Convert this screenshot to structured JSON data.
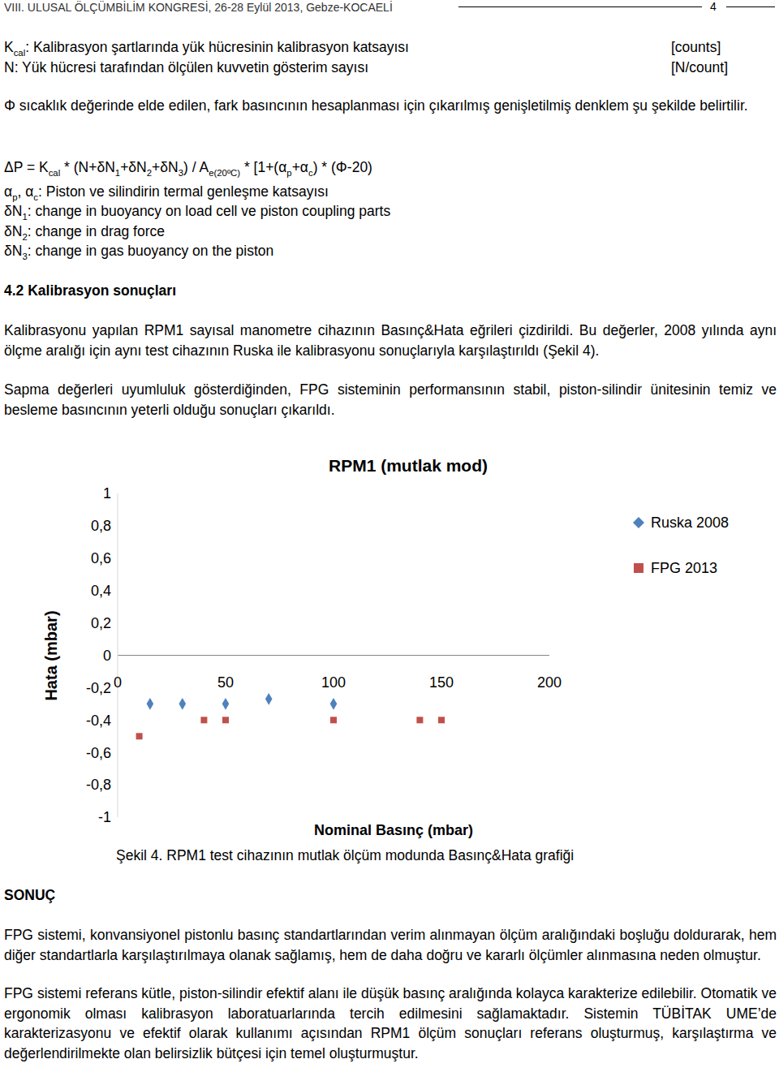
{
  "header": {
    "title": "VIII. ULUSAL ÖLÇÜMBİLİM KONGRESİ, 26-28 Eylül 2013, Gebze-KOCAELİ",
    "page": 4
  },
  "definitions": [
    {
      "parts": [
        {
          "t": "K"
        },
        {
          "sub": "cal"
        },
        {
          "t": ": Kalibrasyon şartlarında yük hücresinin kalibrasyon katsayısı"
        }
      ],
      "unit": "[counts]"
    },
    {
      "parts": [
        {
          "t": "N: Yük hücresi tarafından ölçülen kuvvetin gösterim sayısı"
        }
      ],
      "unit": "[N/count]"
    }
  ],
  "intro": "Φ sıcaklık değerinde elde edilen, fark basıncının hesaplanması için çıkarılmış genişletilmiş denklem şu şekilde belirtilir.",
  "formula": [
    {
      "t": "ΔP = K"
    },
    {
      "sub": "cal"
    },
    {
      "t": " * (N+δN"
    },
    {
      "sub": "1"
    },
    {
      "t": "+δN"
    },
    {
      "sub": "2"
    },
    {
      "t": "+δN"
    },
    {
      "sub": "3"
    },
    {
      "t": ") / A"
    },
    {
      "sub": "e(20ºC)"
    },
    {
      "t": " * [1+(α"
    },
    {
      "sub": "p"
    },
    {
      "t": "+α"
    },
    {
      "sub": "c"
    },
    {
      "t": ") * (Φ-20)"
    }
  ],
  "variables": [
    [
      {
        "t": "α"
      },
      {
        "sub": "p"
      },
      {
        "t": ", α"
      },
      {
        "sub": "c"
      },
      {
        "t": ": Piston ve silindirin termal genleşme katsayısı"
      }
    ],
    [
      {
        "t": "δN"
      },
      {
        "sub": "1"
      },
      {
        "t": ": change in buoyancy on load cell ve piston coupling parts"
      }
    ],
    [
      {
        "t": "δN"
      },
      {
        "sub": "2"
      },
      {
        "t": ": change in drag force"
      }
    ],
    [
      {
        "t": "δN"
      },
      {
        "sub": "3"
      },
      {
        "t": ": change in gas buoyancy on the piston"
      }
    ]
  ],
  "section": {
    "title": "4.2 Kalibrasyon sonuçları",
    "paragraphs": [
      "Kalibrasyonu yapılan RPM1 sayısal manometre cihazının Basınç&Hata eğrileri çizdirildi. Bu değerler, 2008 yılında aynı ölçme aralığı için aynı test cihazının Ruska ile kalibrasyonu sonuçlarıyla karşılaştırıldı (Şekil 4).",
      "Sapma değerleri uyumluluk gösterdiğinden, FPG sisteminin performansının stabil, piston-silindir ünitesinin temiz ve besleme basıncının yeterli olduğu sonuçları çıkarıldı."
    ]
  },
  "chart_data": {
    "type": "scatter",
    "title": "RPM1 (mutlak mod)",
    "x_label": "Nominal Basınç (mbar)",
    "y_label": "Hata (mbar)",
    "xlim": [
      0,
      200
    ],
    "xticks": [
      0,
      50,
      100,
      150,
      200
    ],
    "ylim": [
      -1,
      1
    ],
    "yticks": [
      -1,
      {
        "value": -0.8,
        "label": "-0,8"
      },
      {
        "value": -0.6,
        "label": "-0,6"
      },
      {
        "value": -0.4,
        "label": "-0,4"
      },
      {
        "value": -0.2,
        "label": "-0,2"
      },
      0,
      {
        "value": 0.2,
        "label": "0,2"
      },
      {
        "value": 0.4,
        "label": "0,4"
      },
      {
        "value": 0.6,
        "label": "0,6"
      },
      {
        "value": 0.8,
        "label": "0,8"
      },
      1
    ],
    "grid": false,
    "legend": "upper right",
    "series": [
      {
        "name": "Ruska 2008",
        "color": "#4f81bd",
        "marker": "diamond",
        "x": [
          15,
          30,
          50,
          70,
          100
        ],
        "values": [
          -0.3,
          -0.3,
          -0.3,
          -0.27,
          -0.3
        ]
      },
      {
        "name": "FPG 2013",
        "color": "#c0504d",
        "marker": "square",
        "x": [
          10,
          40,
          50,
          100,
          140,
          150
        ],
        "values": [
          -0.5,
          -0.4,
          -0.4,
          -0.4,
          -0.4,
          -0.4
        ]
      }
    ]
  },
  "caption": "Şekil 4. RPM1 test cihazının mutlak ölçüm modunda Basınç&Hata grafiği",
  "conclusion": {
    "title": "SONUÇ",
    "paragraphs": [
      "FPG sistemi, konvansiyonel pistonlu basınç standartlarından verim alınmayan ölçüm aralığındaki boşluğu doldurarak, hem diğer standartlarla karşılaştırılmaya olanak sağlamış, hem de daha doğru ve kararlı ölçümler alınmasına neden olmuştur.",
      "FPG sistemi referans kütle, piston-silindir efektif alanı ile düşük basınç aralığında kolayca karakterize edilebilir. Otomatik ve ergonomik olması kalibrasyon laboratuarlarında tercih edilmesini sağlamaktadır. Sistemin TÜBİTAK UME’de karakterizasyonu ve efektif olarak kullanımı açısından RPM1 ölçüm sonuçları referans oluşturmuş, karşılaştırma ve değerlendirilmekte olan belirsizlik bütçesi için temel oluşturmuştur."
    ]
  }
}
